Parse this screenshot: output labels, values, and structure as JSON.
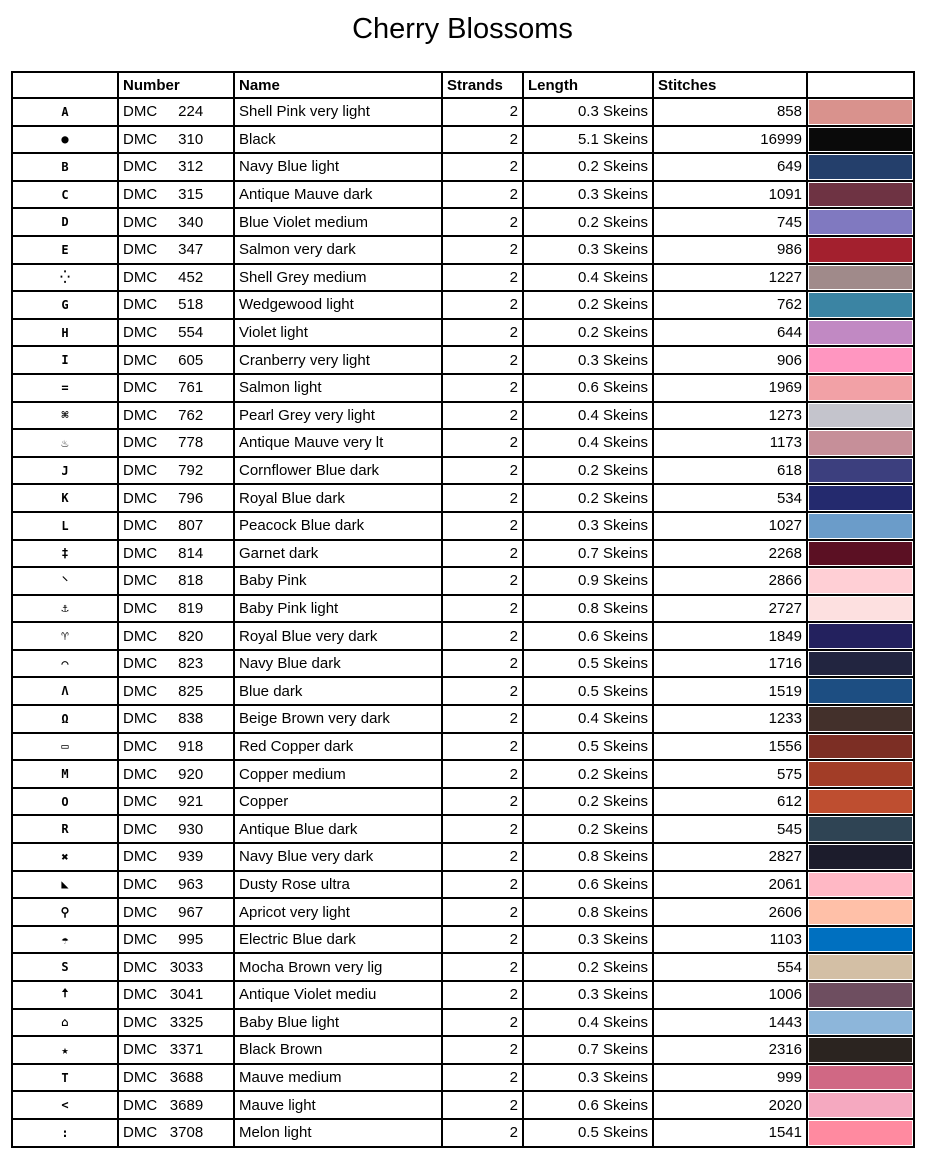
{
  "title": "Cherry Blossoms",
  "headers": [
    "",
    "Number",
    "Name",
    "Strands",
    "Length",
    "Stitches",
    ""
  ],
  "rows": [
    {
      "symbol": "A",
      "brand": "DMC",
      "code": "224",
      "name": "Shell Pink very light",
      "strands": "2",
      "length": "0.3 Skeins",
      "stitches": "858",
      "color": "#D9928D"
    },
    {
      "symbol": "●",
      "brand": "DMC",
      "code": "310",
      "name": "Black",
      "strands": "2",
      "length": "5.1 Skeins",
      "stitches": "16999",
      "color": "#0A0A0A"
    },
    {
      "symbol": "B",
      "brand": "DMC",
      "code": "312",
      "name": "Navy Blue light",
      "strands": "2",
      "length": "0.2 Skeins",
      "stitches": "649",
      "color": "#243F6B"
    },
    {
      "symbol": "C",
      "brand": "DMC",
      "code": "315",
      "name": "Antique Mauve dark",
      "strands": "2",
      "length": "0.3 Skeins",
      "stitches": "1091",
      "color": "#6E3343"
    },
    {
      "symbol": "D",
      "brand": "DMC",
      "code": "340",
      "name": "Blue Violet medium",
      "strands": "2",
      "length": "0.2 Skeins",
      "stitches": "745",
      "color": "#8079C0"
    },
    {
      "symbol": "E",
      "brand": "DMC",
      "code": "347",
      "name": "Salmon very dark",
      "strands": "2",
      "length": "0.3 Skeins",
      "stitches": "986",
      "color": "#A3202E"
    },
    {
      "symbol": "⁛",
      "brand": "DMC",
      "code": "452",
      "name": "Shell Grey medium",
      "strands": "2",
      "length": "0.4 Skeins",
      "stitches": "1227",
      "color": "#A08A8A"
    },
    {
      "symbol": "G",
      "brand": "DMC",
      "code": "518",
      "name": "Wedgewood light",
      "strands": "2",
      "length": "0.2 Skeins",
      "stitches": "762",
      "color": "#3B84A3"
    },
    {
      "symbol": "H",
      "brand": "DMC",
      "code": "554",
      "name": "Violet light",
      "strands": "2",
      "length": "0.2 Skeins",
      "stitches": "644",
      "color": "#C189C3"
    },
    {
      "symbol": "I",
      "brand": "DMC",
      "code": "605",
      "name": "Cranberry very light",
      "strands": "2",
      "length": "0.3 Skeins",
      "stitches": "906",
      "color": "#FF96C0"
    },
    {
      "symbol": "=",
      "brand": "DMC",
      "code": "761",
      "name": "Salmon light",
      "strands": "2",
      "length": "0.6 Skeins",
      "stitches": "1969",
      "color": "#F2A1A6"
    },
    {
      "symbol": "⌘",
      "brand": "DMC",
      "code": "762",
      "name": "Pearl Grey very light",
      "strands": "2",
      "length": "0.4 Skeins",
      "stitches": "1273",
      "color": "#C4C4CC"
    },
    {
      "symbol": "♨",
      "brand": "DMC",
      "code": "778",
      "name": "Antique Mauve very lt",
      "strands": "2",
      "length": "0.4 Skeins",
      "stitches": "1173",
      "color": "#C68F99"
    },
    {
      "symbol": "J",
      "brand": "DMC",
      "code": "792",
      "name": "Cornflower Blue dark",
      "strands": "2",
      "length": "0.2 Skeins",
      "stitches": "618",
      "color": "#3C3F7E"
    },
    {
      "symbol": "K",
      "brand": "DMC",
      "code": "796",
      "name": "Royal Blue dark",
      "strands": "2",
      "length": "0.2 Skeins",
      "stitches": "534",
      "color": "#242A6E"
    },
    {
      "symbol": "L",
      "brand": "DMC",
      "code": "807",
      "name": "Peacock Blue dark",
      "strands": "2",
      "length": "0.3 Skeins",
      "stitches": "1027",
      "color": "#6B9CC9"
    },
    {
      "symbol": "‡",
      "brand": "DMC",
      "code": "814",
      "name": "Garnet dark",
      "strands": "2",
      "length": "0.7 Skeins",
      "stitches": "2268",
      "color": "#5B1023"
    },
    {
      "symbol": "⸌",
      "brand": "DMC",
      "code": "818",
      "name": "Baby Pink",
      "strands": "2",
      "length": "0.9 Skeins",
      "stitches": "2866",
      "color": "#FFCFD5"
    },
    {
      "symbol": "⚓",
      "brand": "DMC",
      "code": "819",
      "name": "Baby Pink light",
      "strands": "2",
      "length": "0.8 Skeins",
      "stitches": "2727",
      "color": "#FDE0E0"
    },
    {
      "symbol": "♈",
      "brand": "DMC",
      "code": "820",
      "name": "Royal Blue very dark",
      "strands": "2",
      "length": "0.6 Skeins",
      "stitches": "1849",
      "color": "#23215E"
    },
    {
      "symbol": "◠",
      "brand": "DMC",
      "code": "823",
      "name": "Navy Blue dark",
      "strands": "2",
      "length": "0.5 Skeins",
      "stitches": "1716",
      "color": "#222540"
    },
    {
      "symbol": "Λ",
      "brand": "DMC",
      "code": "825",
      "name": "Blue dark",
      "strands": "2",
      "length": "0.5 Skeins",
      "stitches": "1519",
      "color": "#1D4E82"
    },
    {
      "symbol": "Ω",
      "brand": "DMC",
      "code": "838",
      "name": "Beige Brown very dark",
      "strands": "2",
      "length": "0.4 Skeins",
      "stitches": "1233",
      "color": "#43302B"
    },
    {
      "symbol": "▭",
      "brand": "DMC",
      "code": "918",
      "name": "Red Copper dark",
      "strands": "2",
      "length": "0.5 Skeins",
      "stitches": "1556",
      "color": "#7C2E24"
    },
    {
      "symbol": "M",
      "brand": "DMC",
      "code": "920",
      "name": "Copper medium",
      "strands": "2",
      "length": "0.2 Skeins",
      "stitches": "575",
      "color": "#A23D27"
    },
    {
      "symbol": "O",
      "brand": "DMC",
      "code": "921",
      "name": "Copper",
      "strands": "2",
      "length": "0.2 Skeins",
      "stitches": "612",
      "color": "#BE4E30"
    },
    {
      "symbol": "R",
      "brand": "DMC",
      "code": "930",
      "name": "Antique Blue dark",
      "strands": "2",
      "length": "0.2 Skeins",
      "stitches": "545",
      "color": "#2F4454"
    },
    {
      "symbol": "✖",
      "brand": "DMC",
      "code": "939",
      "name": "Navy Blue very dark",
      "strands": "2",
      "length": "0.8 Skeins",
      "stitches": "2827",
      "color": "#1C1C2C"
    },
    {
      "symbol": "◣",
      "brand": "DMC",
      "code": "963",
      "name": "Dusty Rose ultra",
      "strands": "2",
      "length": "0.6 Skeins",
      "stitches": "2061",
      "color": "#FFB8C5"
    },
    {
      "symbol": "⚲",
      "brand": "DMC",
      "code": "967",
      "name": "Apricot very light",
      "strands": "2",
      "length": "0.8 Skeins",
      "stitches": "2606",
      "color": "#FFC0A8"
    },
    {
      "symbol": "☂",
      "brand": "DMC",
      "code": "995",
      "name": "Electric Blue dark",
      "strands": "2",
      "length": "0.3 Skeins",
      "stitches": "1103",
      "color": "#0070C0"
    },
    {
      "symbol": "S",
      "brand": "DMC",
      "code": "3033",
      "name": "Mocha Brown very lig",
      "strands": "2",
      "length": "0.2 Skeins",
      "stitches": "554",
      "color": "#D3BFA5"
    },
    {
      "symbol": "🠅",
      "brand": "DMC",
      "code": "3041",
      "name": "Antique Violet mediu",
      "strands": "2",
      "length": "0.3 Skeins",
      "stitches": "1006",
      "color": "#6E4E60"
    },
    {
      "symbol": "⌂",
      "brand": "DMC",
      "code": "3325",
      "name": "Baby Blue light",
      "strands": "2",
      "length": "0.4 Skeins",
      "stitches": "1443",
      "color": "#8DB6DA"
    },
    {
      "symbol": "★",
      "brand": "DMC",
      "code": "3371",
      "name": "Black Brown",
      "strands": "2",
      "length": "0.7 Skeins",
      "stitches": "2316",
      "color": "#2B2420"
    },
    {
      "symbol": "T",
      "brand": "DMC",
      "code": "3688",
      "name": "Mauve medium",
      "strands": "2",
      "length": "0.3 Skeins",
      "stitches": "999",
      "color": "#D06884"
    },
    {
      "symbol": "<",
      "brand": "DMC",
      "code": "3689",
      "name": "Mauve light",
      "strands": "2",
      "length": "0.6 Skeins",
      "stitches": "2020",
      "color": "#F5A9C0"
    },
    {
      "symbol": ":",
      "brand": "DMC",
      "code": "3708",
      "name": "Melon light",
      "strands": "2",
      "length": "0.5 Skeins",
      "stitches": "1541",
      "color": "#FF8AA0"
    }
  ]
}
